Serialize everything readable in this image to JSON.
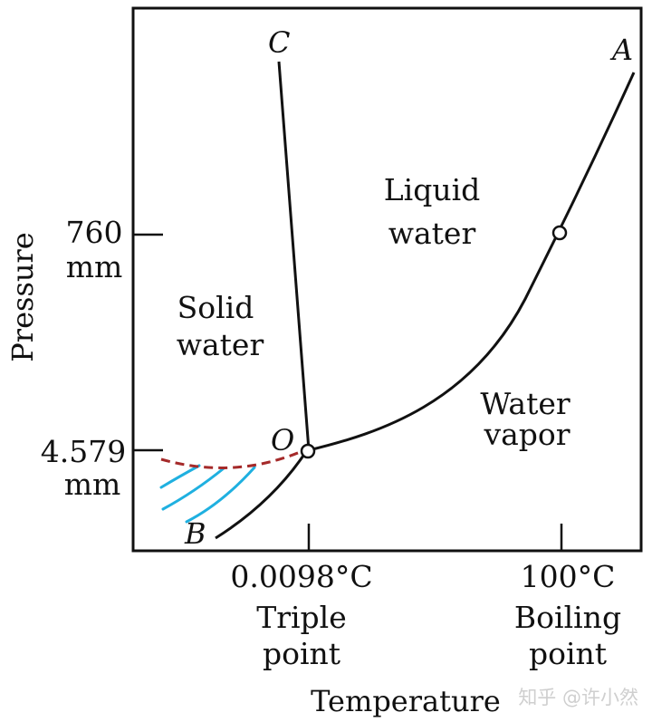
{
  "diagram": {
    "y_axis_title": "Pressure",
    "x_axis_title": "Temperature",
    "pressure_ticks": [
      {
        "value": "760",
        "unit": "mm"
      },
      {
        "value": "4.579",
        "unit": "mm"
      }
    ],
    "temperature_ticks": [
      {
        "value": "0.0098°C",
        "name_line1": "Triple",
        "name_line2": "point"
      },
      {
        "value": "100°C",
        "name_line1": "Boiling",
        "name_line2": "point"
      }
    ],
    "regions": {
      "solid": {
        "line1": "Solid",
        "line2": "water"
      },
      "liquid": {
        "line1": "Liquid",
        "line2": "water"
      },
      "vapor": {
        "line1": "Water",
        "line2": "vapor"
      }
    },
    "curve_labels": {
      "a": "A",
      "b": "B",
      "c": "C",
      "o": "O"
    },
    "colors": {
      "frame": "#111111",
      "curve": "#111111",
      "supercooled_dashed": "#a52a2a",
      "hatching": "#1fb0e0"
    },
    "watermark": "知乎 @许小然"
  }
}
